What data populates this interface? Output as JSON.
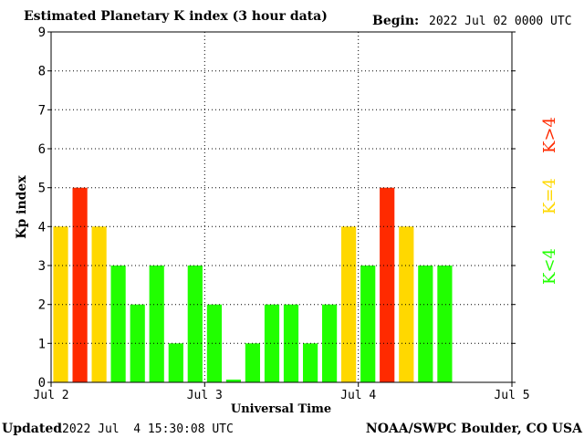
{
  "chart_data": {
    "type": "bar",
    "title": "Estimated Planetary K index (3 hour data)",
    "begin_label": "Begin:",
    "begin_value": "2022 Jul 02 0000 UTC",
    "xlabel": "Universal Time",
    "ylabel": "Kp index",
    "ylim": [
      0,
      9
    ],
    "yticks": [
      "0",
      "1",
      "2",
      "3",
      "4",
      "5",
      "6",
      "7",
      "8",
      "9"
    ],
    "xticks": [
      "Jul 2",
      "Jul 3",
      "Jul 4",
      "Jul 5"
    ],
    "x_range_hours": [
      0,
      72
    ],
    "bar_interval_hours": 3,
    "values": [
      4,
      5,
      4,
      3,
      2,
      3,
      1,
      3,
      2,
      0.07,
      1,
      2,
      2,
      1,
      2,
      4,
      3,
      5,
      4,
      3,
      3
    ],
    "colors": {
      "low": "#21ff00",
      "equal": "#ffd800",
      "high": "#ff2a00"
    },
    "legend": {
      "low": "K<4",
      "equal": "K=4",
      "high": "K>4"
    },
    "grid": true,
    "updated_label": "Updated",
    "updated_value": "2022 Jul  4 15:30:08 UTC",
    "source": "NOAA/SWPC Boulder, CO USA"
  }
}
